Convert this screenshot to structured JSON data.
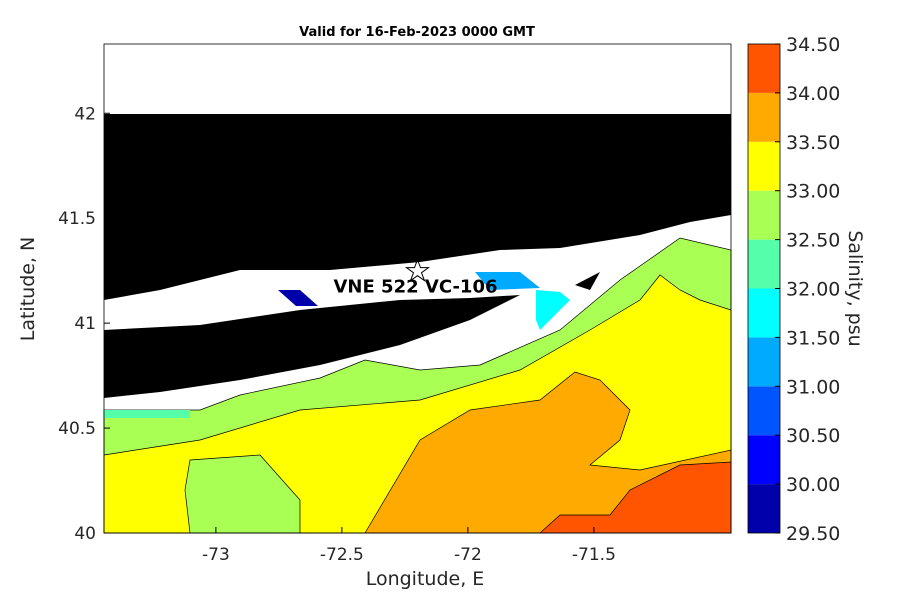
{
  "chart_data": {
    "type": "contour",
    "title": "Valid for 16-Feb-2023 0000 GMT",
    "x_label": "Longitude, E",
    "y_label": "Latitude, N",
    "xlim": [
      -73.444,
      -70.956
    ],
    "ylim": [
      40,
      42.33
    ],
    "xticks": [
      -73,
      -72.5,
      -72,
      -71.5
    ],
    "yticks": [
      40,
      40.5,
      41,
      41.5,
      42
    ],
    "colorbar": {
      "label": "Salinity, psu",
      "levels": [
        {
          "value": 29.5,
          "label": "29.50"
        },
        {
          "value": 30,
          "label": "30.00"
        },
        {
          "value": 30.5,
          "label": "30.50"
        },
        {
          "value": 31,
          "label": "31.00"
        },
        {
          "value": 31.5,
          "label": "31.50"
        },
        {
          "value": 32,
          "label": "32.00"
        },
        {
          "value": 32.5,
          "label": "32.50"
        },
        {
          "value": 33,
          "label": "33.00"
        },
        {
          "value": 33.5,
          "label": "33.50"
        },
        {
          "value": 34,
          "label": "34.00"
        },
        {
          "value": 34.5,
          "label": "34.50"
        }
      ],
      "colors": [
        "#0000aa",
        "#0000ff",
        "#0055ff",
        "#00aaff",
        "#00ffff",
        "#55ffaa",
        "#aaff55",
        "#ffff00",
        "#ffaa00",
        "#ff5500"
      ]
    },
    "annotation": {
      "text": "VNE 522 VC-106",
      "x": -72.2,
      "y": 41.25
    }
  }
}
